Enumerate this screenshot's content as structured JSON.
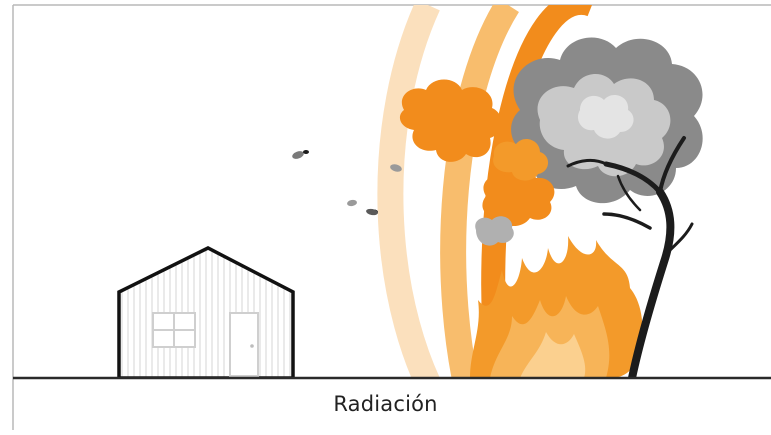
{
  "caption": "Radiación",
  "colors": {
    "frame": "#b8b8b8",
    "ground_line": "#2a2a2a",
    "arc_light": "#fbe0bd",
    "arc_mid": "#f8bd6d",
    "arc_strong": "#f28c1c",
    "flame": "#f39a2a",
    "smoke_dark": "#8a8a8a",
    "smoke_light": "#c9c9c9",
    "trunk": "#1c1c1c",
    "house_outline": "#111111",
    "house_siding": "#d8d8d8"
  },
  "icons": [
    "house-icon",
    "burning-tree-icon",
    "radiation-wave-icon",
    "flame-icon",
    "smoke-icon",
    "ember-icon"
  ]
}
